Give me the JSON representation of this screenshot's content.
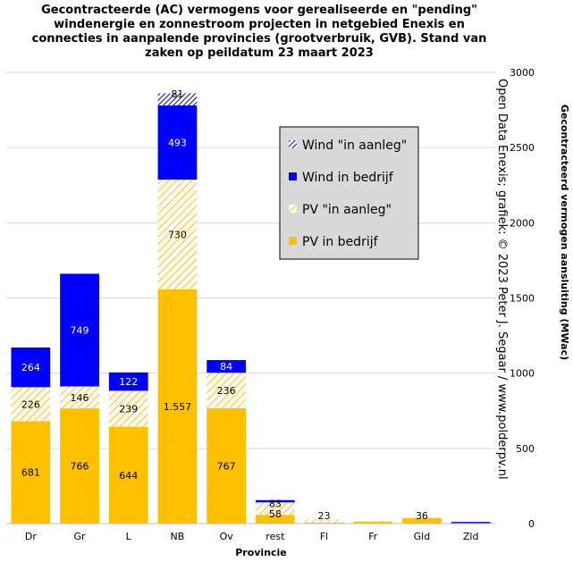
{
  "chart_data": {
    "type": "bar",
    "stacked": true,
    "title_lines": [
      "Gecontracteerde (AC) vermogens voor gerealiseerde en \"pending\"",
      "windenergie  en zonnestroom projecten in netgebied Enexis en",
      "connecties in aanpalende provincies (grootverbruik, GVB). Stand van",
      "zaken op peildatum 23 maart 2023"
    ],
    "xlabel": "Provincie",
    "ylabel": "Gecontracteerd vermogen aansluiting (MWac)",
    "watermark": "Open Data Enexis; grafiek:  © 2023 Peter J. Segaar / www.polderpv.nl",
    "ylim": [
      0,
      3000
    ],
    "yticks": [
      0,
      500,
      1000,
      1500,
      2000,
      2500,
      3000
    ],
    "grid": true,
    "legend_position": "top-right",
    "categories": [
      "Dr",
      "Gr",
      "L",
      "NB",
      "Ov",
      "rest",
      "Fl",
      "Fr",
      "Gld",
      "Zld"
    ],
    "series": [
      {
        "name": "PV in bedrijf",
        "color": "#FFC000",
        "pattern": "solid",
        "values": [
          681,
          766,
          644,
          1557,
          767,
          58,
          6,
          12,
          36,
          3
        ],
        "labels": [
          "681",
          "766",
          "644",
          "1.557",
          "767",
          "58",
          "",
          "",
          "36",
          ""
        ]
      },
      {
        "name": "PV \"in aanleg\"",
        "color": "#FFC000",
        "pattern": "hatch",
        "values": [
          226,
          146,
          239,
          730,
          236,
          83,
          23,
          3,
          5,
          0
        ],
        "labels": [
          "226",
          "146",
          "239",
          "730",
          "236",
          "83",
          "23",
          "",
          "",
          ""
        ]
      },
      {
        "name": "Wind in bedrijf",
        "color": "#0000FF",
        "pattern": "solid",
        "values": [
          264,
          749,
          122,
          493,
          84,
          15,
          0,
          0,
          0,
          8
        ],
        "labels": [
          "264",
          "749",
          "122",
          "493",
          "84",
          "",
          "",
          "",
          "",
          ""
        ]
      },
      {
        "name": "Wind \"in aanleg\"",
        "color": "#0000FF",
        "pattern": "hatch",
        "values": [
          0,
          0,
          0,
          81,
          0,
          0,
          0,
          0,
          0,
          0
        ],
        "labels": [
          "",
          "",
          "",
          "81",
          "",
          "",
          "",
          "",
          "",
          ""
        ]
      }
    ],
    "legend_order": [
      3,
      2,
      1,
      0
    ]
  }
}
